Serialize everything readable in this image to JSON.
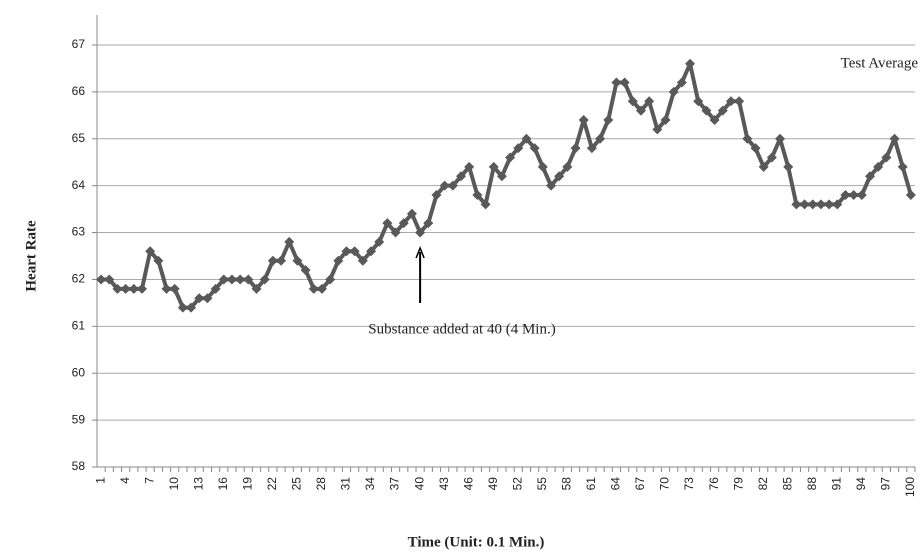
{
  "chart_data": {
    "type": "line",
    "x_label": "Time (Unit: 0.1 Min.)",
    "y_label": "Heart Rate",
    "annotation": "Substance added at 40 (4 Min.)",
    "annotation_at": 40,
    "categories": [
      "1",
      null,
      null,
      "4",
      null,
      null,
      "7",
      null,
      null,
      "10",
      null,
      null,
      "13",
      null,
      null,
      "16",
      null,
      null,
      "19",
      null,
      null,
      "22",
      null,
      null,
      "25",
      null,
      null,
      "28",
      null,
      null,
      "31",
      null,
      null,
      "34",
      null,
      null,
      "37",
      null,
      null,
      "40",
      null,
      null,
      "43",
      null,
      null,
      "46",
      null,
      null,
      "49",
      null,
      null,
      "52",
      null,
      null,
      "55",
      null,
      null,
      "58",
      null,
      null,
      "61",
      null,
      null,
      "64",
      null,
      null,
      "67",
      null,
      null,
      "70",
      null,
      null,
      "73",
      null,
      null,
      "76",
      null,
      null,
      "79",
      null,
      null,
      "82",
      null,
      null,
      "85",
      null,
      null,
      "88",
      null,
      null,
      "91",
      null,
      null,
      "94",
      null,
      null,
      "97",
      null,
      null,
      "100"
    ],
    "series": [
      {
        "name": "Test Average",
        "color": "#595959",
        "values": [
          62,
          62,
          61.8,
          61.8,
          61.8,
          61.8,
          62.6,
          62.4,
          61.8,
          61.8,
          61.4,
          61.4,
          61.6,
          61.6,
          61.8,
          62,
          62,
          62,
          62,
          61.8,
          62,
          62.4,
          62.4,
          62.8,
          62.4,
          62.2,
          61.8,
          61.8,
          62,
          62.4,
          62.6,
          62.6,
          62.4,
          62.6,
          62.8,
          63.2,
          63,
          63.2,
          63.4,
          63,
          63.2,
          63.8,
          64,
          64,
          64.2,
          64.4,
          63.8,
          63.6,
          64.4,
          64.2,
          64.6,
          64.8,
          65,
          64.8,
          64.4,
          64,
          64.2,
          64.4,
          64.8,
          65.4,
          64.8,
          65,
          65.4,
          66.2,
          66.2,
          65.8,
          65.6,
          65.8,
          65.2,
          65.4,
          66,
          66.2,
          66.6,
          65.8,
          65.6,
          65.4,
          65.6,
          65.8,
          65.8,
          65,
          64.8,
          64.4,
          64.6,
          65,
          64.4,
          63.6,
          63.6,
          63.6,
          63.6,
          63.6,
          63.6,
          63.8,
          63.8,
          63.8,
          64.2,
          64.4,
          64.6,
          65,
          64.4,
          63.8
        ]
      }
    ],
    "ylim": [
      58,
      67
    ],
    "yticks": [
      58,
      59,
      60,
      61,
      62,
      63,
      64,
      65,
      66,
      67
    ],
    "grid": true
  }
}
